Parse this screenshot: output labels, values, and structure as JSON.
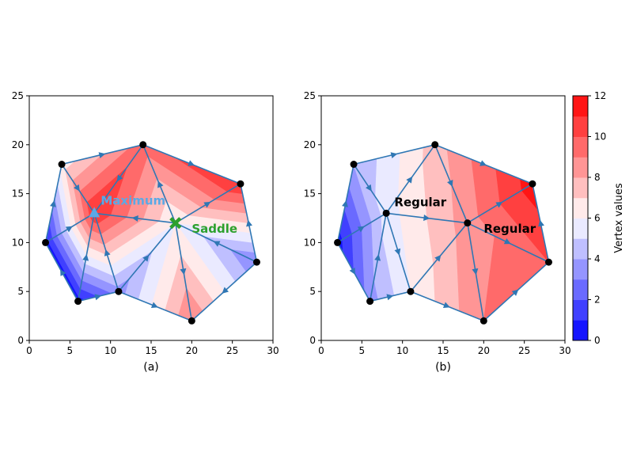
{
  "chart_data": [
    {
      "type": "contour-mesh",
      "panel_label": "(a)",
      "xlim": [
        0,
        30
      ],
      "ylim": [
        0,
        25
      ],
      "xticks": [
        0,
        5,
        10,
        15,
        20,
        25,
        30
      ],
      "yticks": [
        0,
        5,
        10,
        15,
        20,
        25
      ],
      "vertices": [
        {
          "id": "A",
          "x": 4,
          "y": 18,
          "value": 6.5
        },
        {
          "id": "B",
          "x": 14,
          "y": 20,
          "value": 9.5
        },
        {
          "id": "C",
          "x": 26,
          "y": 16,
          "value": 11
        },
        {
          "id": "D",
          "x": 2,
          "y": 10,
          "value": 0.5
        },
        {
          "id": "E",
          "x": 28,
          "y": 8,
          "value": 3
        },
        {
          "id": "F",
          "x": 6,
          "y": 4,
          "value": 0.5
        },
        {
          "id": "G",
          "x": 11,
          "y": 5,
          "value": 3.5
        },
        {
          "id": "H",
          "x": 20,
          "y": 2,
          "value": 9
        },
        {
          "id": "P",
          "x": 8,
          "y": 13,
          "value": 11
        },
        {
          "id": "Q",
          "x": 18,
          "y": 12,
          "value": 6
        }
      ],
      "edges": [
        [
          "D",
          "A"
        ],
        [
          "A",
          "B"
        ],
        [
          "B",
          "C"
        ],
        [
          "C",
          "E"
        ],
        [
          "E",
          "H"
        ],
        [
          "H",
          "G"
        ],
        [
          "G",
          "F"
        ],
        [
          "F",
          "D"
        ],
        [
          "A",
          "P"
        ],
        [
          "B",
          "P"
        ],
        [
          "D",
          "P"
        ],
        [
          "F",
          "P"
        ],
        [
          "G",
          "P"
        ],
        [
          "P",
          "Q"
        ],
        [
          "B",
          "Q"
        ],
        [
          "C",
          "Q"
        ],
        [
          "E",
          "Q"
        ],
        [
          "H",
          "Q"
        ],
        [
          "G",
          "Q"
        ]
      ],
      "annotations": [
        {
          "text": "Maximum",
          "x": 8.8,
          "y": 14.3,
          "color": "#5aa9e6",
          "marker": "triangle",
          "mx": 8,
          "my": 13
        },
        {
          "text": "Saddle",
          "x": 20,
          "y": 11.4,
          "color": "#2ca02c",
          "marker": "x",
          "mx": 18,
          "my": 12
        }
      ]
    },
    {
      "type": "contour-mesh",
      "panel_label": "(b)",
      "xlim": [
        0,
        30
      ],
      "ylim": [
        0,
        25
      ],
      "xticks": [
        0,
        5,
        10,
        15,
        20,
        25,
        30
      ],
      "yticks": [
        0,
        5,
        10,
        15,
        20,
        25
      ],
      "vertices": [
        {
          "id": "A",
          "x": 4,
          "y": 18,
          "value": 4
        },
        {
          "id": "B",
          "x": 14,
          "y": 20,
          "value": 7.5
        },
        {
          "id": "C",
          "x": 26,
          "y": 16,
          "value": 11.5
        },
        {
          "id": "D",
          "x": 2,
          "y": 10,
          "value": 0.5
        },
        {
          "id": "E",
          "x": 28,
          "y": 8,
          "value": 10
        },
        {
          "id": "F",
          "x": 6,
          "y": 4,
          "value": 3.5
        },
        {
          "id": "G",
          "x": 11,
          "y": 5,
          "value": 6
        },
        {
          "id": "H",
          "x": 20,
          "y": 2,
          "value": 9
        },
        {
          "id": "P",
          "x": 8,
          "y": 13,
          "value": 5.5
        },
        {
          "id": "Q",
          "x": 18,
          "y": 12,
          "value": 8.5
        }
      ],
      "edges": [
        [
          "D",
          "A"
        ],
        [
          "A",
          "B"
        ],
        [
          "B",
          "C"
        ],
        [
          "C",
          "E"
        ],
        [
          "E",
          "H"
        ],
        [
          "H",
          "G"
        ],
        [
          "G",
          "F"
        ],
        [
          "F",
          "D"
        ],
        [
          "A",
          "P"
        ],
        [
          "B",
          "P"
        ],
        [
          "D",
          "P"
        ],
        [
          "F",
          "P"
        ],
        [
          "G",
          "P"
        ],
        [
          "P",
          "Q"
        ],
        [
          "B",
          "Q"
        ],
        [
          "C",
          "Q"
        ],
        [
          "E",
          "Q"
        ],
        [
          "H",
          "Q"
        ],
        [
          "G",
          "Q"
        ]
      ],
      "annotations": [
        {
          "text": "Regular",
          "x": 9,
          "y": 14.1,
          "color": "#000000"
        },
        {
          "text": "Regular",
          "x": 20,
          "y": 11.4,
          "color": "#000000"
        }
      ]
    }
  ],
  "colorbar": {
    "label": "Vertex values",
    "min": 0,
    "max": 12,
    "levels": 12,
    "ticks": [
      0,
      2,
      4,
      6,
      8,
      10,
      12
    ],
    "colormap": "bwr"
  },
  "colors": {
    "edge": "#2f77b4",
    "vertex": "#000000"
  }
}
